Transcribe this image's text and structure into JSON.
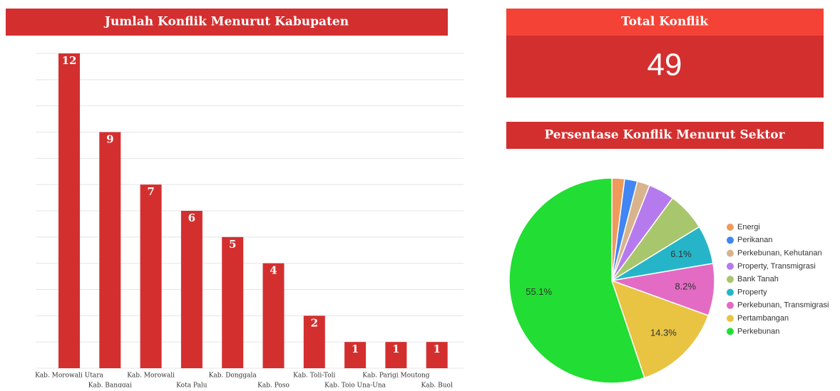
{
  "chart_data": [
    {
      "type": "bar",
      "title": "Jumlah Konflik Menurut Kabupaten",
      "categories": [
        "Kab. Morowali Utara",
        "Kab. Banggai",
        "Kab. Morowali",
        "Kota Palu",
        "Kab. Donggala",
        "Kab. Poso",
        "Kab. Toli-Toli",
        "Kab. Tojo Una-Una",
        "Kab. Parigi Moutong",
        "Kab. Buol"
      ],
      "values": [
        12,
        9,
        7,
        6,
        5,
        4,
        2,
        1,
        1,
        1
      ],
      "color": "#d32f2f",
      "ylim": [
        0,
        12
      ],
      "yticks": [
        0,
        1,
        2,
        3,
        4,
        5,
        6,
        7,
        8,
        9,
        10,
        11,
        12
      ],
      "grid": true
    },
    {
      "type": "pie",
      "title": "Persentase Konflik Menurut Sektor",
      "categories": [
        "Energi",
        "Perikanan",
        "Perkebunan, Kehutanan",
        "Property, Transmigrasi",
        "Bank Tanah",
        "Property",
        "Perkebunan, Transmigrasi",
        "Pertambangan",
        "Perkebunan"
      ],
      "values": [
        2.0,
        2.0,
        2.0,
        4.1,
        6.1,
        6.1,
        8.2,
        14.3,
        55.1
      ],
      "value_labels": [
        null,
        null,
        null,
        null,
        null,
        "6.1%",
        "8.2%",
        "14.3%",
        "55.1%"
      ],
      "colors": [
        "#ef9a5b",
        "#4285f4",
        "#d9b38c",
        "#b57bee",
        "#a8c66c",
        "#26b5c8",
        "#e36bc4",
        "#e9c443",
        "#22dd33"
      ],
      "legend": "right"
    }
  ],
  "stat": {
    "title": "Total Konflik",
    "value": 49
  }
}
